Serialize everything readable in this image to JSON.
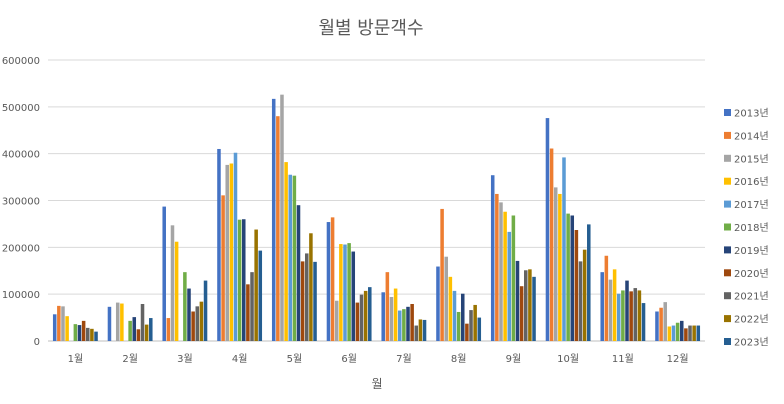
{
  "chart_data": {
    "type": "bar",
    "title": "월별 방문객수",
    "xlabel": "월",
    "ylabel": "",
    "ylim": [
      0,
      600000
    ],
    "yticks": [
      0,
      100000,
      200000,
      300000,
      400000,
      500000,
      600000
    ],
    "ytick_labels": [
      "0",
      "100000",
      "200000",
      "300000",
      "400000",
      "500000",
      "600000"
    ],
    "grid": true,
    "legend_position": "right",
    "categories": [
      "1월",
      "2월",
      "3월",
      "4월",
      "5월",
      "6월",
      "7월",
      "8월",
      "9월",
      "10월",
      "11월",
      "12월"
    ],
    "series": [
      {
        "name": "2013년",
        "color": "#4472C4",
        "values": [
          57000,
          73000,
          287000,
          410000,
          517000,
          254000,
          104000,
          159000,
          354000,
          476000,
          147000,
          63000
        ]
      },
      {
        "name": "2014년",
        "color": "#ED7D31",
        "values": [
          75000,
          0,
          49000,
          311000,
          480000,
          264000,
          147000,
          282000,
          314000,
          411000,
          182000,
          71000
        ]
      },
      {
        "name": "2015년",
        "color": "#A5A5A5",
        "values": [
          74000,
          82000,
          247000,
          376000,
          526000,
          86000,
          94000,
          180000,
          296000,
          328000,
          131000,
          83000
        ]
      },
      {
        "name": "2016년",
        "color": "#FFC000",
        "values": [
          53000,
          80000,
          212000,
          379000,
          382000,
          207000,
          112000,
          137000,
          276000,
          314000,
          153000,
          31000
        ]
      },
      {
        "name": "2017년",
        "color": "#5B9BD5",
        "values": [
          0,
          0,
          0,
          402000,
          355000,
          206000,
          65000,
          107000,
          233000,
          392000,
          101000,
          33000
        ]
      },
      {
        "name": "2018년",
        "color": "#70AD47",
        "values": [
          36000,
          43000,
          147000,
          259000,
          353000,
          209000,
          68000,
          62000,
          268000,
          272000,
          108000,
          39000
        ]
      },
      {
        "name": "2019년",
        "color": "#264478",
        "values": [
          34000,
          51000,
          112000,
          260000,
          290000,
          191000,
          73000,
          101000,
          171000,
          268000,
          129000,
          43000
        ]
      },
      {
        "name": "2020년",
        "color": "#9E480E",
        "values": [
          43000,
          25000,
          63000,
          121000,
          170000,
          82000,
          79000,
          37000,
          117000,
          237000,
          106000,
          27000
        ]
      },
      {
        "name": "2021년",
        "color": "#636363",
        "values": [
          28000,
          79000,
          74000,
          147000,
          187000,
          99000,
          33000,
          66000,
          151000,
          170000,
          113000,
          33000
        ]
      },
      {
        "name": "2022년",
        "color": "#997300",
        "values": [
          26000,
          35000,
          84000,
          238000,
          230000,
          107000,
          46000,
          77000,
          153000,
          195000,
          108000,
          33000
        ]
      },
      {
        "name": "2023년",
        "color": "#255E91",
        "values": [
          20000,
          49000,
          129000,
          193000,
          169000,
          115000,
          45000,
          50000,
          137000,
          249000,
          81000,
          33000
        ]
      }
    ]
  }
}
